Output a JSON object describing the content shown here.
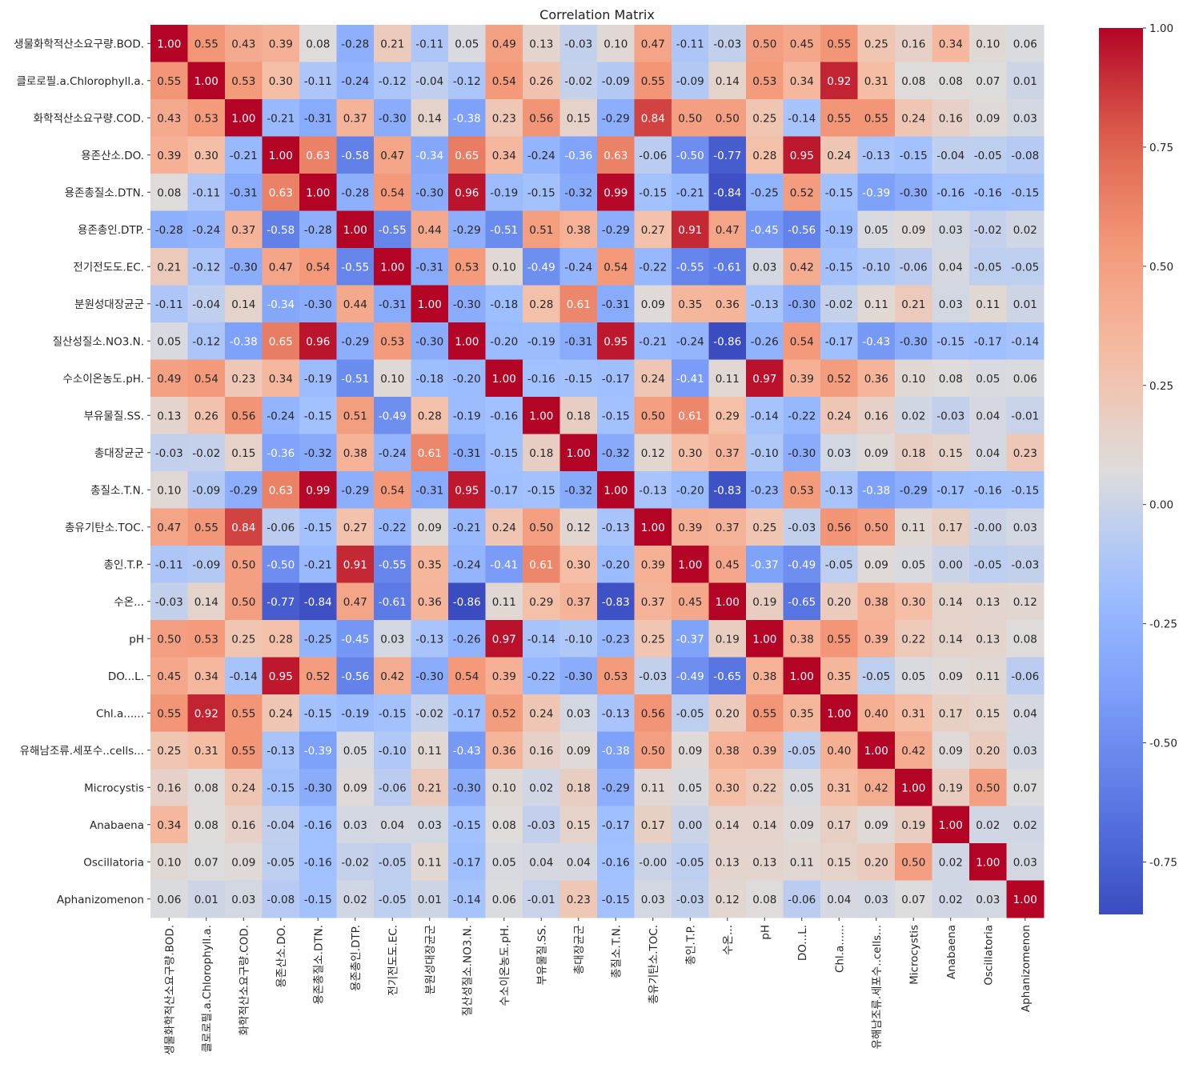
{
  "chart_data": {
    "type": "heatmap",
    "title": "Correlation Matrix",
    "xlabel": "",
    "ylabel": "",
    "colormap": "coolwarm",
    "vmin": -0.86,
    "vmax": 1.0,
    "colorbar_ticks": [
      -0.75,
      -0.5,
      -0.25,
      0.0,
      0.25,
      0.5,
      0.75,
      1.0
    ],
    "colorbar_tick_labels": [
      "-0.75",
      "-0.50",
      "-0.25",
      "0.00",
      "0.25",
      "0.50",
      "0.75",
      "1.00"
    ],
    "colorbar_placement": "right",
    "labels": [
      "생물화학적산소요구량.BOD.",
      "클로로필.a.Chlorophyll.a.",
      "화학적산소요구량.COD.",
      "용존산소.DO.",
      "용존총질소.DTN.",
      "용존총인.DTP.",
      "전기전도도.EC.",
      "분원성대장균군",
      "질산성질소.NO3.N.",
      "수소이온농도.pH.",
      "부유물질.SS.",
      "총대장균군",
      "총질소.T.N.",
      "총유기탄소.TOC.",
      "총인.T.P.",
      "수온...",
      "pH",
      "DO...L.",
      "Chl.a......",
      "유해남조류.세포수..cells...",
      "Microcystis",
      "Anabaena",
      "Oscillatoria",
      "Aphanizomenon"
    ],
    "values": [
      [
        1.0,
        0.55,
        0.43,
        0.39,
        0.08,
        -0.28,
        0.21,
        -0.11,
        0.05,
        0.49,
        0.13,
        -0.03,
        0.1,
        0.47,
        -0.11,
        -0.03,
        0.5,
        0.45,
        0.55,
        0.25,
        0.16,
        0.34,
        0.1,
        0.06
      ],
      [
        0.55,
        1.0,
        0.53,
        0.3,
        -0.11,
        -0.24,
        -0.12,
        -0.04,
        -0.12,
        0.54,
        0.26,
        -0.02,
        -0.09,
        0.55,
        -0.09,
        0.14,
        0.53,
        0.34,
        0.92,
        0.31,
        0.08,
        0.08,
        0.07,
        0.01
      ],
      [
        0.43,
        0.53,
        1.0,
        -0.21,
        -0.31,
        0.37,
        -0.3,
        0.14,
        -0.38,
        0.23,
        0.56,
        0.15,
        -0.29,
        0.84,
        0.5,
        0.5,
        0.25,
        -0.14,
        0.55,
        0.55,
        0.24,
        0.16,
        0.09,
        0.03
      ],
      [
        0.39,
        0.3,
        -0.21,
        1.0,
        0.63,
        -0.58,
        0.47,
        -0.34,
        0.65,
        0.34,
        -0.24,
        -0.36,
        0.63,
        -0.06,
        -0.5,
        -0.77,
        0.28,
        0.95,
        0.24,
        -0.13,
        -0.15,
        -0.04,
        -0.05,
        -0.08
      ],
      [
        0.08,
        -0.11,
        -0.31,
        0.63,
        1.0,
        -0.28,
        0.54,
        -0.3,
        0.96,
        -0.19,
        -0.15,
        -0.32,
        0.99,
        -0.15,
        -0.21,
        -0.84,
        -0.25,
        0.52,
        -0.15,
        -0.39,
        -0.3,
        -0.16,
        -0.16,
        -0.15
      ],
      [
        -0.28,
        -0.24,
        0.37,
        -0.58,
        -0.28,
        1.0,
        -0.55,
        0.44,
        -0.29,
        -0.51,
        0.51,
        0.38,
        -0.29,
        0.27,
        0.91,
        0.47,
        -0.45,
        -0.56,
        -0.19,
        0.05,
        0.09,
        0.03,
        -0.02,
        0.02
      ],
      [
        0.21,
        -0.12,
        -0.3,
        0.47,
        0.54,
        -0.55,
        1.0,
        -0.31,
        0.53,
        0.1,
        -0.49,
        -0.24,
        0.54,
        -0.22,
        -0.55,
        -0.61,
        0.03,
        0.42,
        -0.15,
        -0.1,
        -0.06,
        0.04,
        -0.05,
        -0.05
      ],
      [
        -0.11,
        -0.04,
        0.14,
        -0.34,
        -0.3,
        0.44,
        -0.31,
        1.0,
        -0.3,
        -0.18,
        0.28,
        0.61,
        -0.31,
        0.09,
        0.35,
        0.36,
        -0.13,
        -0.3,
        -0.02,
        0.11,
        0.21,
        0.03,
        0.11,
        0.01
      ],
      [
        0.05,
        -0.12,
        -0.38,
        0.65,
        0.96,
        -0.29,
        0.53,
        -0.3,
        1.0,
        -0.2,
        -0.19,
        -0.31,
        0.95,
        -0.21,
        -0.24,
        -0.86,
        -0.26,
        0.54,
        -0.17,
        -0.43,
        -0.3,
        -0.15,
        -0.17,
        -0.14
      ],
      [
        0.49,
        0.54,
        0.23,
        0.34,
        -0.19,
        -0.51,
        0.1,
        -0.18,
        -0.2,
        1.0,
        -0.16,
        -0.15,
        -0.17,
        0.24,
        -0.41,
        0.11,
        0.97,
        0.39,
        0.52,
        0.36,
        0.1,
        0.08,
        0.05,
        0.06
      ],
      [
        0.13,
        0.26,
        0.56,
        -0.24,
        -0.15,
        0.51,
        -0.49,
        0.28,
        -0.19,
        -0.16,
        1.0,
        0.18,
        -0.15,
        0.5,
        0.61,
        0.29,
        -0.14,
        -0.22,
        0.24,
        0.16,
        0.02,
        -0.03,
        0.04,
        -0.01
      ],
      [
        -0.03,
        -0.02,
        0.15,
        -0.36,
        -0.32,
        0.38,
        -0.24,
        0.61,
        -0.31,
        -0.15,
        0.18,
        1.0,
        -0.32,
        0.12,
        0.3,
        0.37,
        -0.1,
        -0.3,
        0.03,
        0.09,
        0.18,
        0.15,
        0.04,
        0.23
      ],
      [
        0.1,
        -0.09,
        -0.29,
        0.63,
        0.99,
        -0.29,
        0.54,
        -0.31,
        0.95,
        -0.17,
        -0.15,
        -0.32,
        1.0,
        -0.13,
        -0.2,
        -0.83,
        -0.23,
        0.53,
        -0.13,
        -0.38,
        -0.29,
        -0.17,
        -0.16,
        -0.15
      ],
      [
        0.47,
        0.55,
        0.84,
        -0.06,
        -0.15,
        0.27,
        -0.22,
        0.09,
        -0.21,
        0.24,
        0.5,
        0.12,
        -0.13,
        1.0,
        0.39,
        0.37,
        0.25,
        -0.03,
        0.56,
        0.5,
        0.11,
        0.17,
        -0.0,
        0.03
      ],
      [
        -0.11,
        -0.09,
        0.5,
        -0.5,
        -0.21,
        0.91,
        -0.55,
        0.35,
        -0.24,
        -0.41,
        0.61,
        0.3,
        -0.2,
        0.39,
        1.0,
        0.45,
        -0.37,
        -0.49,
        -0.05,
        0.09,
        0.05,
        0.0,
        -0.05,
        -0.03
      ],
      [
        -0.03,
        0.14,
        0.5,
        -0.77,
        -0.84,
        0.47,
        -0.61,
        0.36,
        -0.86,
        0.11,
        0.29,
        0.37,
        -0.83,
        0.37,
        0.45,
        1.0,
        0.19,
        -0.65,
        0.2,
        0.38,
        0.3,
        0.14,
        0.13,
        0.12
      ],
      [
        0.5,
        0.53,
        0.25,
        0.28,
        -0.25,
        -0.45,
        0.03,
        -0.13,
        -0.26,
        0.97,
        -0.14,
        -0.1,
        -0.23,
        0.25,
        -0.37,
        0.19,
        1.0,
        0.38,
        0.55,
        0.39,
        0.22,
        0.14,
        0.13,
        0.08
      ],
      [
        0.45,
        0.34,
        -0.14,
        0.95,
        0.52,
        -0.56,
        0.42,
        -0.3,
        0.54,
        0.39,
        -0.22,
        -0.3,
        0.53,
        -0.03,
        -0.49,
        -0.65,
        0.38,
        1.0,
        0.35,
        -0.05,
        0.05,
        0.09,
        0.11,
        -0.06
      ],
      [
        0.55,
        0.92,
        0.55,
        0.24,
        -0.15,
        -0.19,
        -0.15,
        -0.02,
        -0.17,
        0.52,
        0.24,
        0.03,
        -0.13,
        0.56,
        -0.05,
        0.2,
        0.55,
        0.35,
        1.0,
        0.4,
        0.31,
        0.17,
        0.15,
        0.04
      ],
      [
        0.25,
        0.31,
        0.55,
        -0.13,
        -0.39,
        0.05,
        -0.1,
        0.11,
        -0.43,
        0.36,
        0.16,
        0.09,
        -0.38,
        0.5,
        0.09,
        0.38,
        0.39,
        -0.05,
        0.4,
        1.0,
        0.42,
        0.09,
        0.2,
        0.03
      ],
      [
        0.16,
        0.08,
        0.24,
        -0.15,
        -0.3,
        0.09,
        -0.06,
        0.21,
        -0.3,
        0.1,
        0.02,
        0.18,
        -0.29,
        0.11,
        0.05,
        0.3,
        0.22,
        0.05,
        0.31,
        0.42,
        1.0,
        0.19,
        0.5,
        0.07
      ],
      [
        0.34,
        0.08,
        0.16,
        -0.04,
        -0.16,
        0.03,
        0.04,
        0.03,
        -0.15,
        0.08,
        -0.03,
        0.15,
        -0.17,
        0.17,
        0.0,
        0.14,
        0.14,
        0.09,
        0.17,
        0.09,
        0.19,
        1.0,
        0.02,
        0.02
      ],
      [
        0.1,
        0.07,
        0.09,
        -0.05,
        -0.16,
        -0.02,
        -0.05,
        0.11,
        -0.17,
        0.05,
        0.04,
        0.04,
        -0.16,
        -0.0,
        -0.05,
        0.13,
        0.13,
        0.11,
        0.15,
        0.2,
        0.5,
        0.02,
        1.0,
        0.03
      ],
      [
        0.06,
        0.01,
        0.03,
        -0.08,
        -0.15,
        0.02,
        -0.05,
        0.01,
        -0.14,
        0.06,
        -0.01,
        0.23,
        -0.15,
        0.03,
        -0.03,
        0.12,
        0.08,
        -0.06,
        0.04,
        0.03,
        0.07,
        0.02,
        0.03,
        1.0
      ]
    ]
  }
}
